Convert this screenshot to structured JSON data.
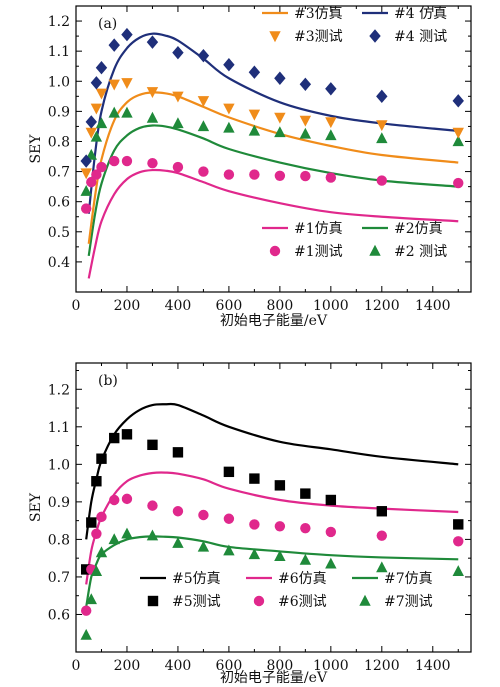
{
  "chart_data": [
    {
      "type": "line",
      "panel_label": "(a)",
      "xlabel": "初始电子能量/eV",
      "ylabel": "SEY",
      "xlim": [
        0,
        1550
      ],
      "ylim": [
        0.3,
        1.25
      ],
      "xticks": [
        0,
        200,
        400,
        600,
        800,
        1000,
        1200,
        1400
      ],
      "yticks": [
        0.4,
        0.5,
        0.6,
        0.7,
        0.8,
        0.9,
        1.0,
        1.1,
        1.2
      ],
      "ytick_labels": [
        "0.4",
        "0.5",
        "0.6",
        "0.7",
        "0.8",
        "0.9",
        "1.0",
        "1.1",
        "1.2"
      ],
      "series": [
        {
          "name": "#1仿真",
          "kind": "line",
          "color": "#e0288c",
          "x": [
            50,
            75,
            100,
            150,
            200,
            250,
            300,
            350,
            400,
            500,
            600,
            800,
            1000,
            1200,
            1500
          ],
          "y": [
            0.345,
            0.45,
            0.535,
            0.625,
            0.675,
            0.698,
            0.705,
            0.703,
            0.695,
            0.665,
            0.635,
            0.595,
            0.565,
            0.55,
            0.535
          ]
        },
        {
          "name": "#2仿真",
          "kind": "line",
          "color": "#1f8a3a",
          "x": [
            50,
            75,
            100,
            150,
            200,
            250,
            300,
            350,
            400,
            500,
            600,
            800,
            1000,
            1200,
            1500
          ],
          "y": [
            0.42,
            0.56,
            0.66,
            0.77,
            0.82,
            0.845,
            0.853,
            0.85,
            0.84,
            0.81,
            0.775,
            0.73,
            0.695,
            0.67,
            0.65
          ]
        },
        {
          "name": "#3仿真",
          "kind": "line",
          "color": "#f08c1a",
          "x": [
            50,
            75,
            100,
            150,
            200,
            250,
            300,
            350,
            400,
            500,
            600,
            800,
            1000,
            1200,
            1500
          ],
          "y": [
            0.46,
            0.62,
            0.74,
            0.87,
            0.93,
            0.955,
            0.963,
            0.96,
            0.95,
            0.915,
            0.88,
            0.825,
            0.785,
            0.755,
            0.73
          ]
        },
        {
          "name": "#4仿真",
          "kind": "line",
          "color": "#1f2f7a",
          "x": [
            50,
            75,
            100,
            150,
            200,
            250,
            300,
            350,
            400,
            500,
            600,
            800,
            1000,
            1200,
            1500
          ],
          "y": [
            0.56,
            0.76,
            0.9,
            1.04,
            1.11,
            1.145,
            1.158,
            1.152,
            1.135,
            1.075,
            1.01,
            0.93,
            0.885,
            0.86,
            0.835
          ]
        },
        {
          "name": "#1测试",
          "kind": "scatter",
          "marker": "circle",
          "color": "#e0288c",
          "x": [
            40,
            60,
            80,
            100,
            150,
            200,
            300,
            400,
            500,
            600,
            700,
            800,
            900,
            1000,
            1200,
            1500
          ],
          "y": [
            0.577,
            0.665,
            0.69,
            0.715,
            0.735,
            0.735,
            0.728,
            0.715,
            0.7,
            0.69,
            0.69,
            0.686,
            0.685,
            0.68,
            0.67,
            0.662
          ]
        },
        {
          "name": "#2测试",
          "kind": "scatter",
          "marker": "triangle-up",
          "color": "#1f8a3a",
          "x": [
            40,
            60,
            80,
            100,
            150,
            200,
            300,
            400,
            500,
            600,
            700,
            800,
            900,
            1000,
            1200,
            1500
          ],
          "y": [
            0.635,
            0.755,
            0.815,
            0.86,
            0.895,
            0.895,
            0.878,
            0.86,
            0.85,
            0.845,
            0.835,
            0.83,
            0.825,
            0.82,
            0.81,
            0.8
          ]
        },
        {
          "name": "#3测试",
          "kind": "scatter",
          "marker": "triangle-down",
          "color": "#f08c1a",
          "x": [
            40,
            60,
            80,
            100,
            150,
            200,
            300,
            400,
            500,
            600,
            700,
            800,
            900,
            1000,
            1200,
            1500
          ],
          "y": [
            0.695,
            0.83,
            0.91,
            0.96,
            0.99,
            0.995,
            0.965,
            0.95,
            0.935,
            0.91,
            0.89,
            0.88,
            0.87,
            0.865,
            0.855,
            0.83
          ]
        },
        {
          "name": "#4测试",
          "kind": "scatter",
          "marker": "diamond",
          "color": "#1f2f7a",
          "x": [
            40,
            60,
            80,
            100,
            150,
            200,
            300,
            400,
            500,
            600,
            700,
            800,
            900,
            1000,
            1200,
            1500
          ],
          "y": [
            0.735,
            0.865,
            0.995,
            1.045,
            1.12,
            1.155,
            1.13,
            1.095,
            1.085,
            1.055,
            1.03,
            1.01,
            0.99,
            0.975,
            0.95,
            0.935
          ]
        }
      ],
      "legends": [
        {
          "position": "top-right",
          "entries": [
            "#3仿真",
            "#4仿真",
            "#3测试",
            "#4测试"
          ]
        },
        {
          "position": "bottom-right",
          "entries": [
            "#1仿真",
            "#2仿真",
            "#1测试",
            "#2测试"
          ]
        }
      ],
      "legend_labels": {
        "#3仿真": "#3仿真",
        "#4仿真": "#4 仿真",
        "#3测试": "#3测试",
        "#4测试": "#4 测试",
        "#1仿真": "#1仿真",
        "#2仿真": "#2仿真",
        "#1测试": "#1测试",
        "#2测试": "#2 测试"
      },
      "grid": false
    },
    {
      "type": "line",
      "panel_label": "(b)",
      "xlabel": "初始电子能量/eV",
      "ylabel": "SEY",
      "xlim": [
        0,
        1550
      ],
      "ylim": [
        0.5,
        1.27
      ],
      "xticks": [
        0,
        200,
        400,
        600,
        800,
        1000,
        1200,
        1400
      ],
      "yticks": [
        0.6,
        0.7,
        0.8,
        0.9,
        1.0,
        1.1,
        1.2
      ],
      "ytick_labels": [
        "0.6",
        "0.7",
        "0.8",
        "0.9",
        "1.0",
        "1.1",
        "1.2"
      ],
      "series": [
        {
          "name": "#5仿真",
          "kind": "line",
          "color": "#000000",
          "x": [
            40,
            60,
            80,
            100,
            150,
            200,
            250,
            300,
            350,
            400,
            500,
            600,
            800,
            1000,
            1200,
            1500
          ],
          "y": [
            0.8,
            0.9,
            0.96,
            1.01,
            1.08,
            1.12,
            1.145,
            1.158,
            1.16,
            1.158,
            1.13,
            1.1,
            1.06,
            1.04,
            1.02,
            1.0
          ]
        },
        {
          "name": "#6仿真",
          "kind": "line",
          "color": "#e0288c",
          "x": [
            40,
            60,
            80,
            100,
            150,
            200,
            250,
            300,
            350,
            400,
            500,
            600,
            800,
            1000,
            1200,
            1500
          ],
          "y": [
            0.68,
            0.77,
            0.82,
            0.86,
            0.92,
            0.955,
            0.97,
            0.977,
            0.978,
            0.975,
            0.96,
            0.935,
            0.905,
            0.89,
            0.882,
            0.873
          ]
        },
        {
          "name": "#7仿真",
          "kind": "line",
          "color": "#1f8a3a",
          "x": [
            40,
            60,
            80,
            100,
            150,
            200,
            250,
            300,
            350,
            400,
            500,
            600,
            800,
            1000,
            1200,
            1500
          ],
          "y": [
            0.62,
            0.7,
            0.735,
            0.76,
            0.785,
            0.8,
            0.806,
            0.808,
            0.807,
            0.805,
            0.795,
            0.78,
            0.768,
            0.758,
            0.752,
            0.747
          ]
        },
        {
          "name": "#5测试",
          "kind": "scatter",
          "marker": "square",
          "color": "#000000",
          "x": [
            40,
            60,
            80,
            100,
            150,
            200,
            300,
            400,
            600,
            700,
            800,
            900,
            1000,
            1200,
            1500
          ],
          "y": [
            0.72,
            0.845,
            0.955,
            1.015,
            1.07,
            1.08,
            1.052,
            1.032,
            0.98,
            0.962,
            0.944,
            0.922,
            0.905,
            0.875,
            0.84
          ]
        },
        {
          "name": "#6测试",
          "kind": "scatter",
          "marker": "circle",
          "color": "#e0288c",
          "x": [
            40,
            60,
            80,
            100,
            150,
            200,
            300,
            400,
            500,
            600,
            700,
            800,
            900,
            1000,
            1200,
            1500
          ],
          "y": [
            0.61,
            0.72,
            0.815,
            0.86,
            0.905,
            0.908,
            0.89,
            0.875,
            0.865,
            0.855,
            0.84,
            0.835,
            0.83,
            0.82,
            0.81,
            0.795
          ]
        },
        {
          "name": "#7测试",
          "kind": "scatter",
          "marker": "triangle-up",
          "color": "#1f8a3a",
          "x": [
            40,
            60,
            80,
            100,
            150,
            200,
            300,
            400,
            500,
            600,
            700,
            800,
            900,
            1000,
            1200,
            1500
          ],
          "y": [
            0.545,
            0.64,
            0.715,
            0.765,
            0.8,
            0.815,
            0.81,
            0.79,
            0.78,
            0.77,
            0.76,
            0.755,
            0.745,
            0.735,
            0.725,
            0.715
          ]
        }
      ],
      "legends": [
        {
          "position": "bottom-right",
          "entries": [
            "#5仿真",
            "#6仿真",
            "#7仿真",
            "#5测试",
            "#6测试",
            "#7测试"
          ]
        }
      ],
      "legend_labels": {
        "#5仿真": "#5仿真",
        "#6仿真": "#6仿真",
        "#7仿真": "#7仿真",
        "#5测试": "#5测试",
        "#6测试": "#6测试",
        "#7测试": "#7测试"
      },
      "grid": false
    }
  ]
}
